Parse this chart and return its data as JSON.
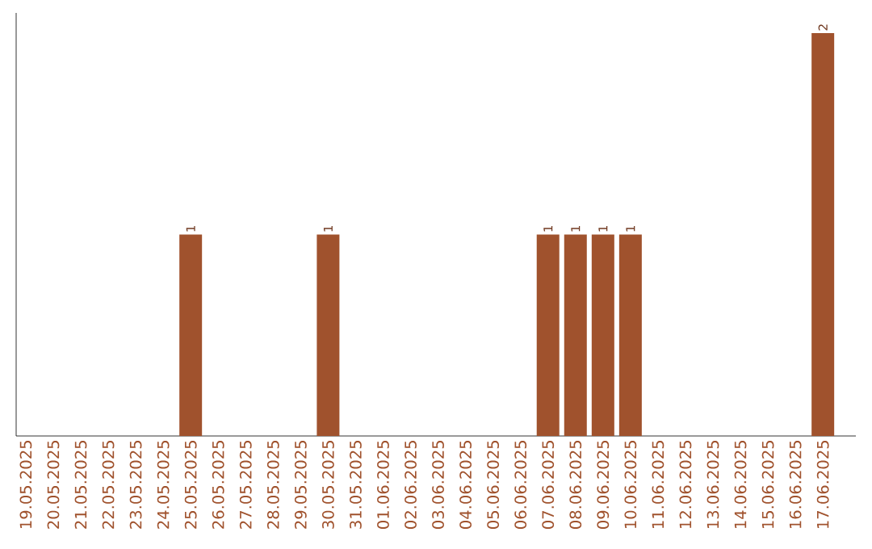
{
  "chart_data": {
    "type": "bar",
    "color": "#a0522d",
    "categories": [
      "19.05.2025",
      "20.05.2025",
      "21.05.2025",
      "22.05.2025",
      "23.05.2025",
      "24.05.2025",
      "25.05.2025",
      "26.05.2025",
      "27.05.2025",
      "28.05.2025",
      "29.05.2025",
      "30.05.2025",
      "31.05.2025",
      "01.06.2025",
      "02.06.2025",
      "03.06.2025",
      "04.06.2025",
      "05.06.2025",
      "06.06.2025",
      "07.06.2025",
      "08.06.2025",
      "09.06.2025",
      "10.06.2025",
      "11.06.2025",
      "12.06.2025",
      "13.06.2025",
      "14.06.2025",
      "15.06.2025",
      "16.06.2025",
      "17.06.2025"
    ],
    "values": [
      0,
      0,
      0,
      0,
      0,
      0,
      1,
      0,
      0,
      0,
      0,
      1,
      0,
      0,
      0,
      0,
      0,
      0,
      0,
      1,
      1,
      1,
      1,
      0,
      0,
      0,
      0,
      0,
      0,
      2
    ],
    "value_labels": [
      null,
      null,
      null,
      null,
      null,
      null,
      "1",
      null,
      null,
      null,
      null,
      "1",
      null,
      null,
      null,
      null,
      null,
      null,
      null,
      "1",
      "1",
      "1",
      "1",
      null,
      null,
      null,
      null,
      null,
      null,
      "2"
    ]
  }
}
